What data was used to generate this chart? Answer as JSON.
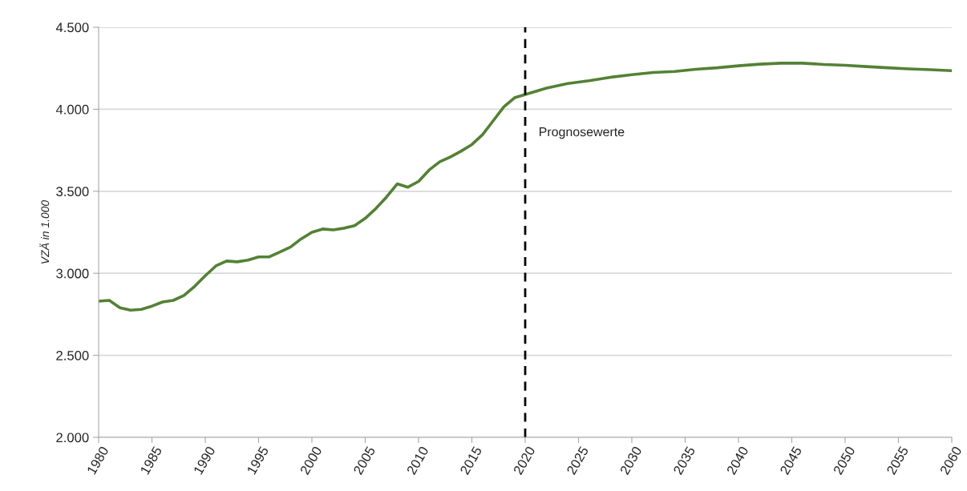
{
  "chart_data": {
    "type": "line",
    "ylabel": "VZÄ in 1.000",
    "x": [
      1980,
      1981,
      1982,
      1983,
      1984,
      1985,
      1986,
      1987,
      1988,
      1989,
      1990,
      1991,
      1992,
      1993,
      1994,
      1995,
      1996,
      1997,
      1998,
      1999,
      2000,
      2001,
      2002,
      2003,
      2004,
      2005,
      2006,
      2007,
      2008,
      2009,
      2010,
      2011,
      2012,
      2013,
      2014,
      2015,
      2016,
      2017,
      2018,
      2019,
      2020,
      2022,
      2024,
      2026,
      2028,
      2030,
      2032,
      2034,
      2036,
      2038,
      2040,
      2042,
      2044,
      2046,
      2048,
      2050,
      2052,
      2054,
      2056,
      2058,
      2060
    ],
    "series": [
      {
        "color": "#538135",
        "values": [
          2830,
          2835,
          2790,
          2775,
          2780,
          2800,
          2825,
          2835,
          2865,
          2920,
          2985,
          3045,
          3075,
          3070,
          3080,
          3100,
          3100,
          3130,
          3160,
          3210,
          3250,
          3270,
          3265,
          3275,
          3290,
          3335,
          3395,
          3465,
          3545,
          3525,
          3560,
          3630,
          3680,
          3710,
          3745,
          3785,
          3845,
          3930,
          4015,
          4070,
          4090,
          4129,
          4157,
          4174,
          4195,
          4211,
          4224,
          4230,
          4244,
          4253,
          4265,
          4275,
          4281,
          4281,
          4273,
          4268,
          4260,
          4253,
          4246,
          4241,
          4235
        ]
      }
    ],
    "xlim": [
      1980,
      2060
    ],
    "xticks": [
      1980,
      1985,
      1990,
      1995,
      2000,
      2005,
      2010,
      2015,
      2020,
      2025,
      2030,
      2035,
      2040,
      2045,
      2050,
      2055,
      2060
    ],
    "ylim": [
      2000,
      4500
    ],
    "yticks": [
      {
        "value": 2000,
        "label": "2.000"
      },
      {
        "value": 2500,
        "label": "2.500"
      },
      {
        "value": 3000,
        "label": "3.000"
      },
      {
        "value": 3500,
        "label": "3.500"
      },
      {
        "value": 4000,
        "label": "4.000"
      },
      {
        "value": 4500,
        "label": "4.500"
      }
    ],
    "grid": "y",
    "line_style": "solid",
    "marker": "none",
    "ref_lines": [
      {
        "axis": "x",
        "value": 2020,
        "label": "Prognosewerte",
        "color": "#000000",
        "line_style": "dashed"
      }
    ]
  }
}
